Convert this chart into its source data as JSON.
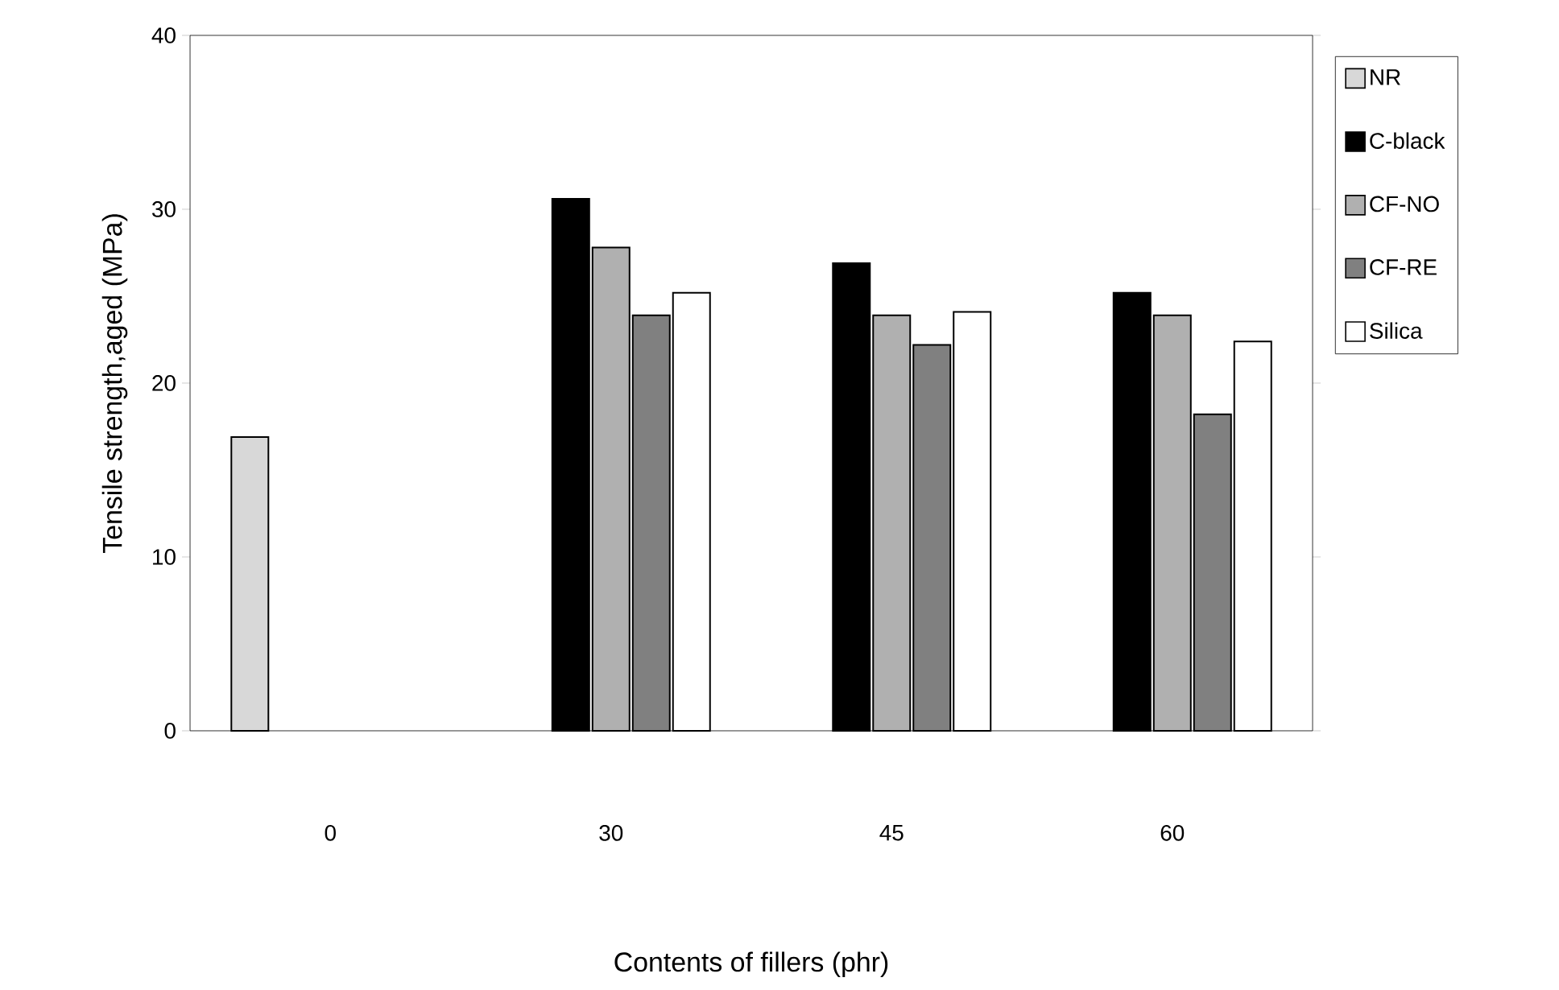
{
  "chart_data": {
    "type": "bar",
    "xlabel": "Contents of fillers (phr)",
    "ylabel": "Tensile strength,aged (MPa)",
    "categories": [
      "0",
      "30",
      "45",
      "60"
    ],
    "series": [
      {
        "name": "NR",
        "color": "#d8d8d8",
        "values": [
          16.9,
          null,
          null,
          null
        ]
      },
      {
        "name": "C-black",
        "color": "#000000",
        "values": [
          null,
          30.6,
          26.9,
          25.2
        ]
      },
      {
        "name": "CF-NO",
        "color": "#b0b0b0",
        "values": [
          null,
          27.8,
          23.9,
          23.9
        ]
      },
      {
        "name": "CF-RE",
        "color": "#808080",
        "values": [
          null,
          23.9,
          22.2,
          18.2
        ]
      },
      {
        "name": "Silica",
        "color": "#ffffff",
        "values": [
          null,
          25.2,
          24.1,
          22.4
        ]
      }
    ],
    "ylim": [
      0,
      40
    ],
    "yticks": [
      0,
      10,
      20,
      30,
      40
    ],
    "grid": false,
    "legend": "right"
  }
}
